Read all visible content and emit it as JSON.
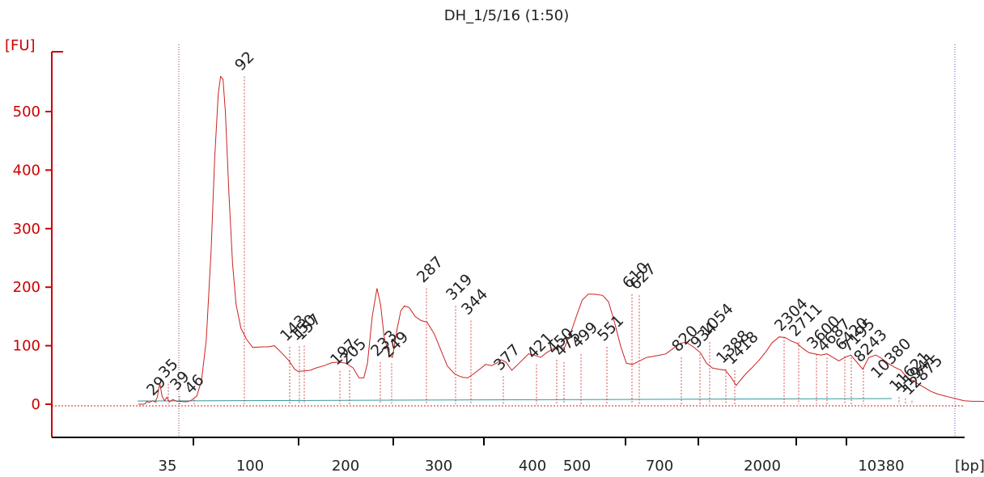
{
  "chart_data": {
    "type": "line",
    "title": "DH_1/5/16 (1:50)",
    "ylabel": "[FU]",
    "xlabel": "[bp]",
    "ylim": [
      -55,
      600
    ],
    "y_ticks": [
      0,
      100,
      200,
      300,
      400,
      500
    ],
    "y_tick_labels": [
      "0",
      "100",
      "200",
      "300",
      "400",
      "500"
    ],
    "x_tick_labels": [
      "35",
      "100",
      "200",
      "300",
      "400",
      "500",
      "700",
      "2000",
      "10380"
    ],
    "grid": false,
    "colors": {
      "trace": "#cc2222",
      "axis_y": "#cc0000",
      "axis_x": "#000000",
      "baseline": "#339999",
      "lower_marker": "#2e8b2e",
      "upper_marker": "#9933cc"
    },
    "markers": [
      {
        "label": "35",
        "role": "lower",
        "x_bp": 35,
        "height": 45
      },
      {
        "label": "10380",
        "role": "upper",
        "x_bp": 10380,
        "height": 18
      }
    ],
    "peaks": [
      {
        "label": "29",
        "height": 5
      },
      {
        "label": "35",
        "height": 35
      },
      {
        "label": "39",
        "height": 14
      },
      {
        "label": "46",
        "height": 8
      },
      {
        "label": "92",
        "height": 560
      },
      {
        "label": "143",
        "height": 98
      },
      {
        "label": "150",
        "height": 99
      },
      {
        "label": "157",
        "height": 100
      },
      {
        "label": "197",
        "height": 57
      },
      {
        "label": "205",
        "height": 58
      },
      {
        "label": "233",
        "height": 72
      },
      {
        "label": "249",
        "height": 70
      },
      {
        "label": "287",
        "height": 198
      },
      {
        "label": "319",
        "height": 168
      },
      {
        "label": "344",
        "height": 143
      },
      {
        "label": "377",
        "height": 48
      },
      {
        "label": "421",
        "height": 68
      },
      {
        "label": "450",
        "height": 76
      },
      {
        "label": "475",
        "height": 72
      },
      {
        "label": "499",
        "height": 86
      },
      {
        "label": "551",
        "height": 98
      },
      {
        "label": "610",
        "height": 188
      },
      {
        "label": "627",
        "height": 186
      },
      {
        "label": "820",
        "height": 80
      },
      {
        "label": "934",
        "height": 86
      },
      {
        "label": "1054",
        "height": 106
      },
      {
        "label": "1388",
        "height": 60
      },
      {
        "label": "1418",
        "height": 58
      },
      {
        "label": "2304",
        "height": 115
      },
      {
        "label": "2711",
        "height": 106
      },
      {
        "label": "3600",
        "height": 85
      },
      {
        "label": "4687",
        "height": 80
      },
      {
        "label": "6420",
        "height": 82
      },
      {
        "label": "7195",
        "height": 80
      },
      {
        "label": "8243",
        "height": 62
      },
      {
        "label": "11621",
        "height": 12
      },
      {
        "label": "11941",
        "height": 10
      },
      {
        "label": "12875",
        "height": 6
      }
    ],
    "trace": [
      [
        -0.34,
        0
      ],
      [
        -0.3,
        0
      ],
      [
        -0.28,
        1
      ],
      [
        -0.27,
        5
      ],
      [
        -0.25,
        3
      ],
      [
        -0.22,
        6
      ],
      [
        -0.2,
        4
      ],
      [
        -0.18,
        12
      ],
      [
        -0.16,
        36
      ],
      [
        -0.14,
        14
      ],
      [
        -0.12,
        6
      ],
      [
        -0.1,
        12
      ],
      [
        -0.08,
        4
      ],
      [
        -0.05,
        8
      ],
      [
        -0.02,
        5
      ],
      [
        0.0,
        5
      ],
      [
        0.06,
        4
      ],
      [
        0.1,
        6
      ],
      [
        0.15,
        14
      ],
      [
        0.19,
        40
      ],
      [
        0.23,
        110
      ],
      [
        0.27,
        260
      ],
      [
        0.3,
        420
      ],
      [
        0.33,
        530
      ],
      [
        0.35,
        560
      ],
      [
        0.37,
        555
      ],
      [
        0.39,
        500
      ],
      [
        0.42,
        360
      ],
      [
        0.45,
        240
      ],
      [
        0.48,
        170
      ],
      [
        0.52,
        130
      ],
      [
        0.57,
        110
      ],
      [
        0.62,
        97
      ],
      [
        0.7,
        98
      ],
      [
        0.75,
        98
      ],
      [
        0.8,
        100
      ],
      [
        0.86,
        88
      ],
      [
        0.92,
        75
      ],
      [
        0.97,
        60
      ],
      [
        1.0,
        56
      ],
      [
        1.05,
        57
      ],
      [
        1.1,
        58
      ],
      [
        1.15,
        62
      ],
      [
        1.22,
        66
      ],
      [
        1.28,
        71
      ],
      [
        1.34,
        72
      ],
      [
        1.4,
        70
      ],
      [
        1.46,
        62
      ],
      [
        1.51,
        45
      ],
      [
        1.55,
        45
      ],
      [
        1.58,
        70
      ],
      [
        1.62,
        150
      ],
      [
        1.66,
        198
      ],
      [
        1.69,
        170
      ],
      [
        1.72,
        115
      ],
      [
        1.76,
        85
      ],
      [
        1.79,
        80
      ],
      [
        1.83,
        130
      ],
      [
        1.86,
        160
      ],
      [
        1.89,
        168
      ],
      [
        1.93,
        165
      ],
      [
        1.98,
        150
      ],
      [
        2.03,
        143
      ],
      [
        2.08,
        140
      ],
      [
        2.14,
        120
      ],
      [
        2.2,
        90
      ],
      [
        2.25,
        65
      ],
      [
        2.31,
        52
      ],
      [
        2.35,
        48
      ],
      [
        2.38,
        46
      ],
      [
        2.42,
        45
      ],
      [
        2.47,
        52
      ],
      [
        2.52,
        60
      ],
      [
        2.57,
        68
      ],
      [
        2.62,
        66
      ],
      [
        2.66,
        70
      ],
      [
        2.7,
        76
      ],
      [
        2.74,
        72
      ],
      [
        2.79,
        58
      ],
      [
        2.84,
        68
      ],
      [
        2.89,
        78
      ],
      [
        2.93,
        86
      ],
      [
        2.98,
        84
      ],
      [
        3.03,
        80
      ],
      [
        3.08,
        88
      ],
      [
        3.13,
        94
      ],
      [
        3.18,
        98
      ],
      [
        3.23,
        96
      ],
      [
        3.28,
        120
      ],
      [
        3.33,
        150
      ],
      [
        3.38,
        178
      ],
      [
        3.43,
        188
      ],
      [
        3.48,
        188
      ],
      [
        3.55,
        186
      ],
      [
        3.6,
        175
      ],
      [
        3.65,
        140
      ],
      [
        3.7,
        100
      ],
      [
        3.75,
        70
      ],
      [
        3.8,
        68
      ],
      [
        3.86,
        74
      ],
      [
        3.92,
        80
      ],
      [
        3.98,
        82
      ],
      [
        4.03,
        84
      ],
      [
        4.08,
        86
      ],
      [
        4.14,
        95
      ],
      [
        4.2,
        104
      ],
      [
        4.25,
        106
      ],
      [
        4.31,
        98
      ],
      [
        4.37,
        88
      ],
      [
        4.42,
        70
      ],
      [
        4.47,
        62
      ],
      [
        4.52,
        60
      ],
      [
        4.58,
        58
      ],
      [
        4.63,
        45
      ],
      [
        4.67,
        32
      ],
      [
        4.7,
        40
      ],
      [
        4.75,
        52
      ],
      [
        4.8,
        62
      ],
      [
        4.86,
        75
      ],
      [
        4.92,
        90
      ],
      [
        4.97,
        105
      ],
      [
        5.03,
        115
      ],
      [
        5.08,
        114
      ],
      [
        5.13,
        108
      ],
      [
        5.18,
        104
      ],
      [
        5.23,
        95
      ],
      [
        5.28,
        88
      ],
      [
        5.33,
        86
      ],
      [
        5.38,
        84
      ],
      [
        5.43,
        86
      ],
      [
        5.48,
        80
      ],
      [
        5.53,
        74
      ],
      [
        5.58,
        80
      ],
      [
        5.63,
        84
      ],
      [
        5.68,
        72
      ],
      [
        5.73,
        60
      ],
      [
        5.78,
        80
      ],
      [
        5.84,
        84
      ],
      [
        5.89,
        78
      ],
      [
        5.94,
        70
      ],
      [
        5.99,
        64
      ],
      [
        6.05,
        58
      ],
      [
        6.1,
        46
      ],
      [
        6.15,
        40
      ],
      [
        6.2,
        34
      ],
      [
        6.25,
        28
      ],
      [
        6.3,
        22
      ],
      [
        6.35,
        18
      ],
      [
        6.4,
        15
      ],
      [
        6.46,
        12
      ],
      [
        6.52,
        9
      ],
      [
        6.58,
        6
      ],
      [
        6.65,
        5
      ],
      [
        6.72,
        5
      ],
      [
        6.8,
        4
      ],
      [
        6.85,
        6
      ],
      [
        6.9,
        4
      ],
      [
        6.95,
        6
      ],
      [
        7.0,
        5
      ],
      [
        7.07,
        4
      ],
      [
        7.13,
        6
      ],
      [
        7.2,
        5
      ]
    ]
  }
}
